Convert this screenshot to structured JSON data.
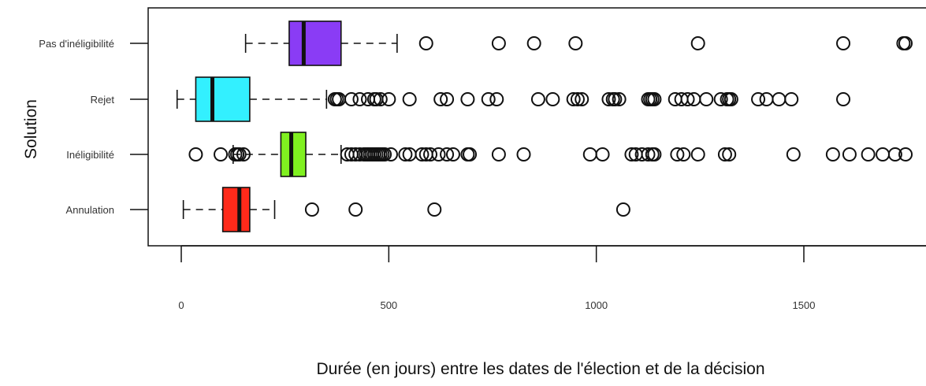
{
  "chart_data": {
    "type": "boxplot",
    "orientation": "horizontal",
    "xlabel": "Durée (en jours) entre les dates de l'élection et de la décision",
    "ylabel": "Solution",
    "xlim": [
      -75,
      1790
    ],
    "x_ticks": [
      0,
      500,
      1000,
      1500
    ],
    "x_tick_labels": [
      "0",
      "500",
      "1000",
      "1500"
    ],
    "grid": false,
    "categories": [
      "Pas d'inéligibilité",
      "Rejet",
      "Inéligibilité",
      "Annulation"
    ],
    "series": [
      {
        "category": "Pas d'inéligibilité",
        "color": "#8a3cf5",
        "whisker_low": 155,
        "q1": 260,
        "median": 295,
        "q3": 385,
        "whisker_high": 520,
        "outliers": [
          590,
          765,
          850,
          950,
          1245,
          1595,
          1740,
          1745
        ]
      },
      {
        "category": "Rejet",
        "color": "#33f0ff",
        "whisker_low": -10,
        "q1": 35,
        "median": 75,
        "q3": 165,
        "whisker_high": 350,
        "outliers": [
          370,
          375,
          380,
          410,
          430,
          450,
          465,
          470,
          480,
          500,
          550,
          625,
          640,
          690,
          740,
          760,
          860,
          895,
          945,
          955,
          965,
          1030,
          1040,
          1045,
          1055,
          1125,
          1130,
          1135,
          1140,
          1190,
          1205,
          1220,
          1235,
          1265,
          1300,
          1315,
          1320,
          1325,
          1390,
          1410,
          1440,
          1470,
          1595
        ]
      },
      {
        "category": "Inéligibilité",
        "color": "#80f020",
        "whisker_low": 125,
        "q1": 240,
        "median": 265,
        "q3": 300,
        "whisker_high": 385,
        "outliers": [
          35,
          95,
          130,
          135,
          140,
          150,
          400,
          410,
          420,
          430,
          440,
          445,
          450,
          455,
          460,
          465,
          470,
          475,
          480,
          485,
          490,
          505,
          540,
          550,
          580,
          590,
          600,
          620,
          640,
          655,
          690,
          695,
          765,
          825,
          985,
          1015,
          1085,
          1095,
          1110,
          1125,
          1135,
          1140,
          1195,
          1210,
          1245,
          1310,
          1320,
          1475,
          1570,
          1610,
          1655,
          1690,
          1720,
          1745
        ]
      },
      {
        "category": "Annulation",
        "color": "#ff2a1a",
        "whisker_low": 5,
        "q1": 100,
        "median": 140,
        "q3": 165,
        "whisker_high": 225,
        "outliers": [
          315,
          420,
          610,
          1065
        ]
      }
    ]
  }
}
